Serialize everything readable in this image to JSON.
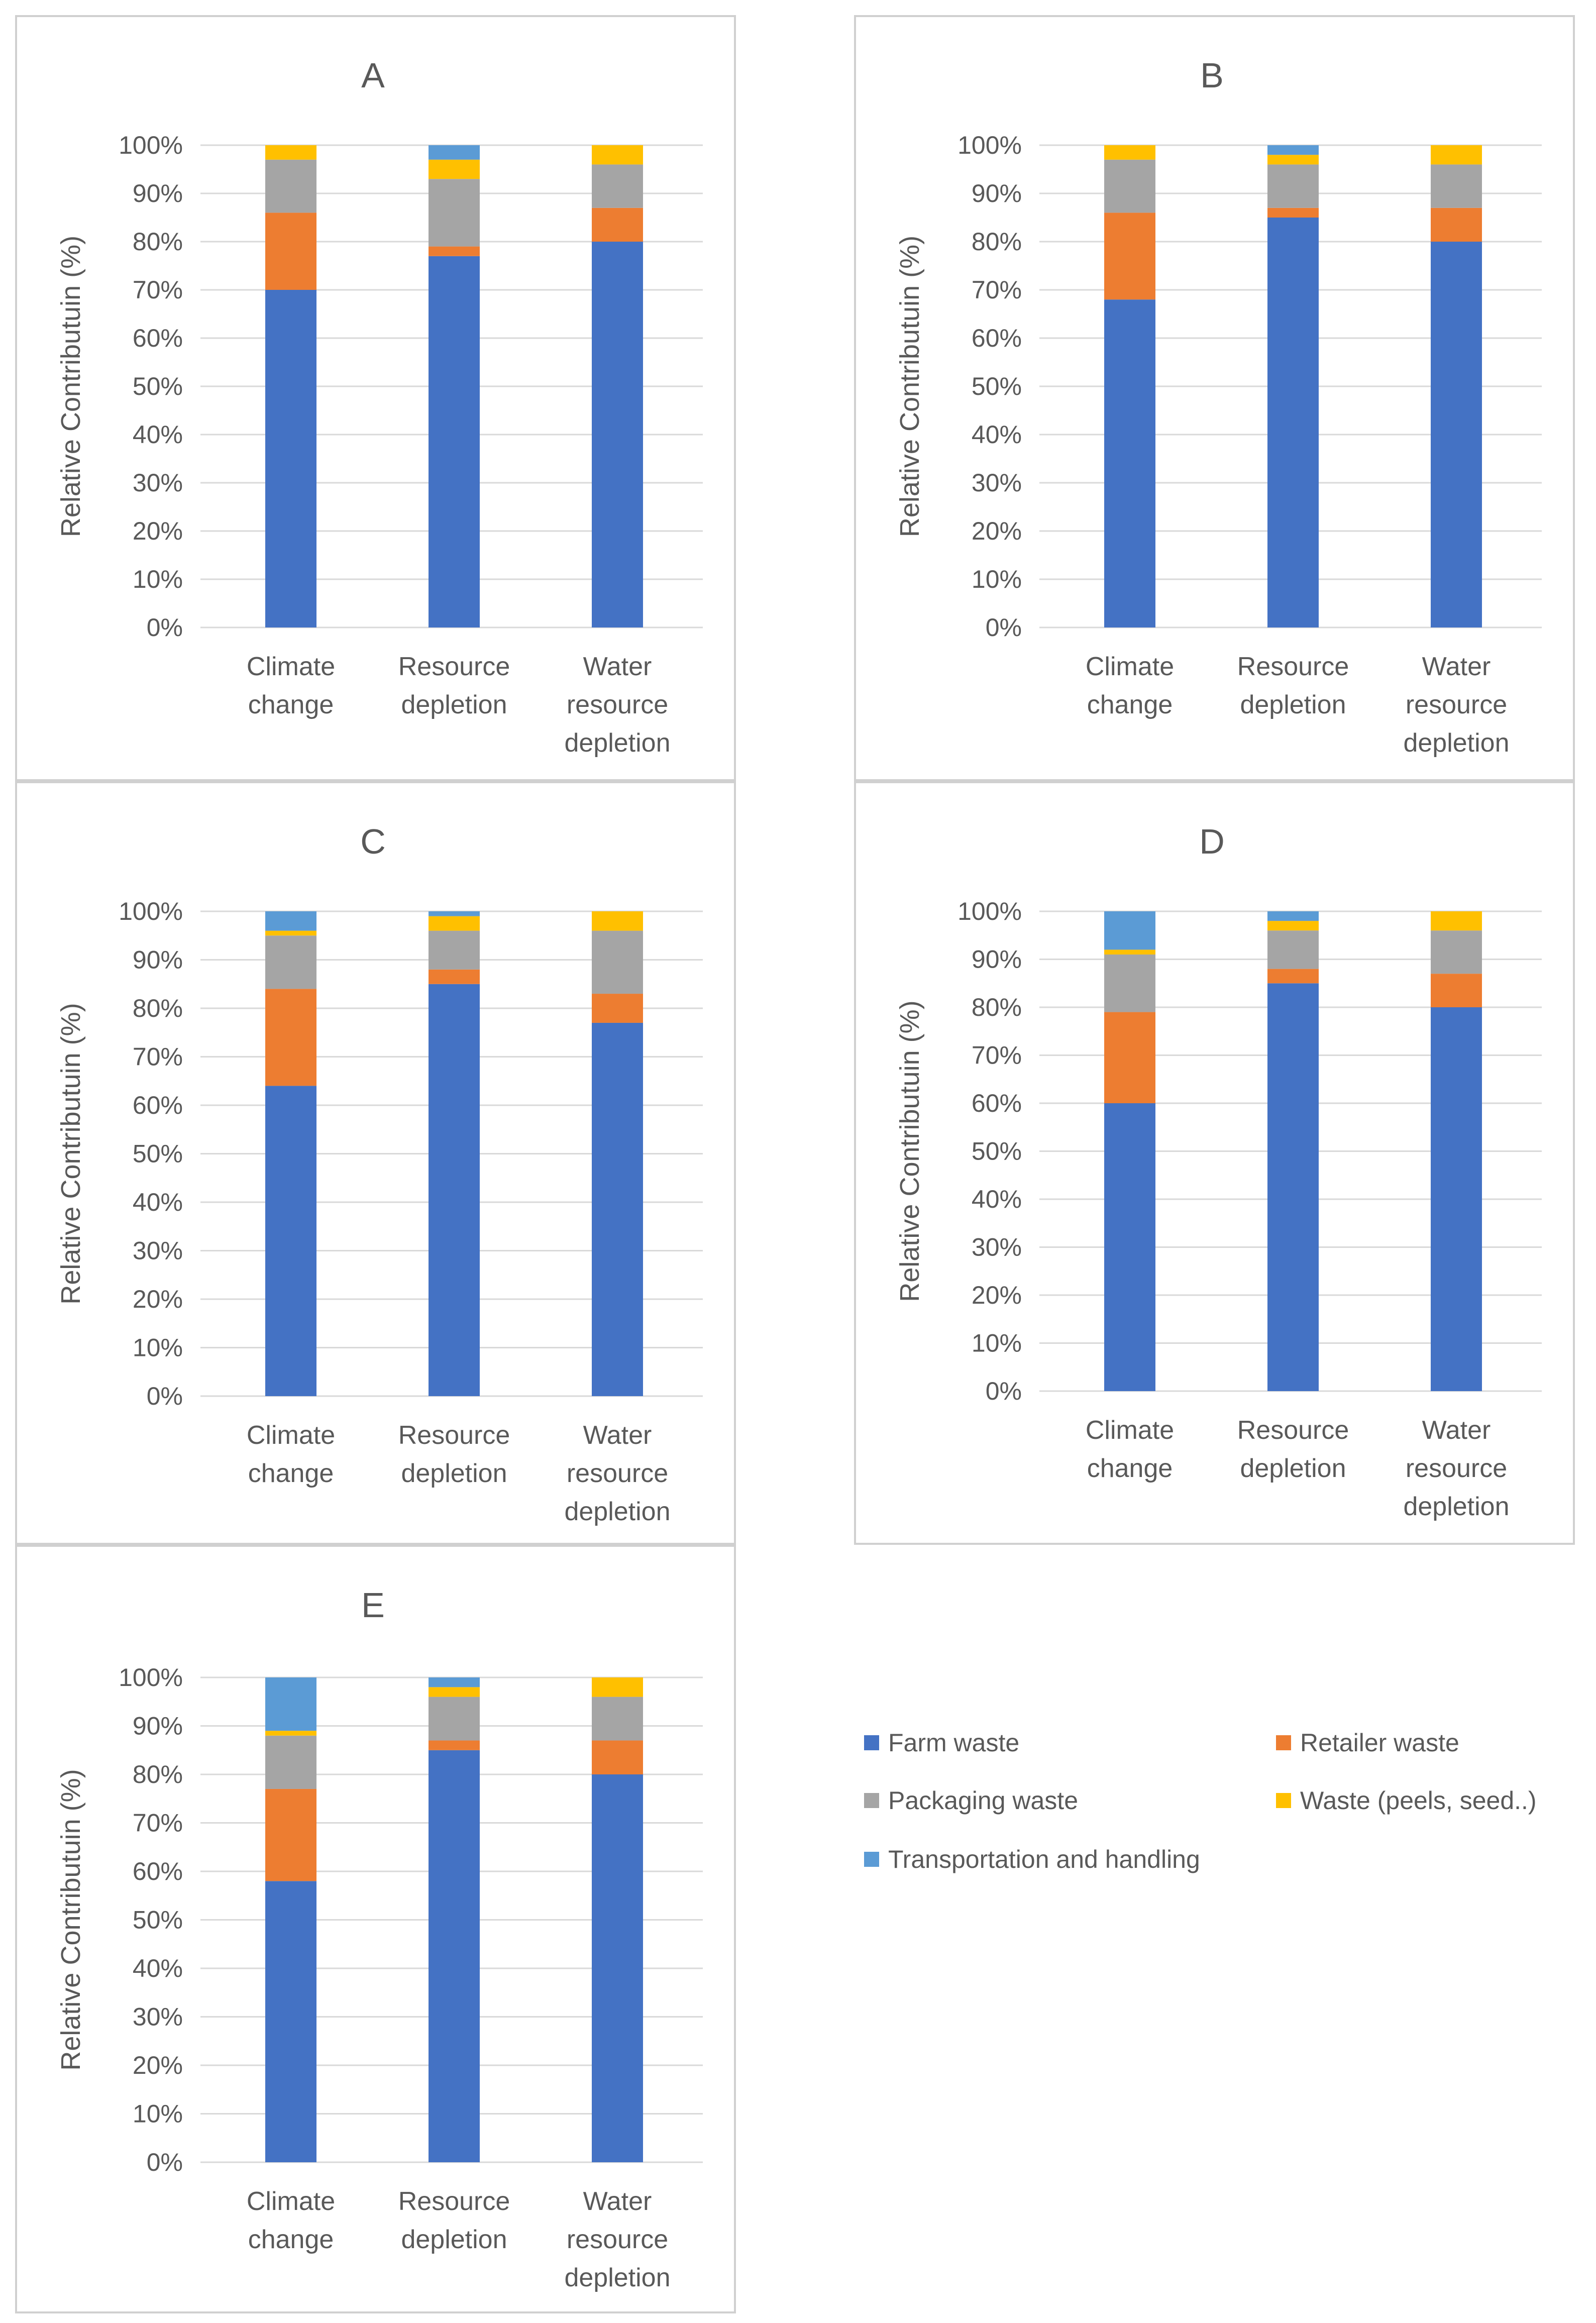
{
  "legend": {
    "items": [
      {
        "name": "Farm waste",
        "color": "#4472C4"
      },
      {
        "name": "Retailer waste",
        "color": "#ED7D31"
      },
      {
        "name": "Packaging waste",
        "color": "#A5A5A5"
      },
      {
        "name": "Waste (peels, seed..)",
        "color": "#FFC000"
      },
      {
        "name": "Transportation and handling",
        "color": "#5B9BD5"
      }
    ]
  },
  "chart_data": [
    {
      "type": "bar",
      "stacked": true,
      "title": "A",
      "ylabel": "Relative Contributuin (%)",
      "ylim": [
        0,
        100
      ],
      "yticks": [
        "0%",
        "10%",
        "20%",
        "30%",
        "40%",
        "50%",
        "60%",
        "70%",
        "80%",
        "90%",
        "100%"
      ],
      "categories": [
        [
          "Climate",
          "change"
        ],
        [
          "Resource",
          "depletion"
        ],
        [
          "Water",
          "resource",
          "depletion"
        ]
      ],
      "series": [
        {
          "name": "Farm waste",
          "color": "#4472C4",
          "values": [
            70,
            77,
            80
          ]
        },
        {
          "name": "Retailer waste",
          "color": "#ED7D31",
          "values": [
            16,
            2,
            7
          ]
        },
        {
          "name": "Packaging waste",
          "color": "#A5A5A5",
          "values": [
            11,
            14,
            9
          ]
        },
        {
          "name": "Waste (peels, seed..)",
          "color": "#FFC000",
          "values": [
            3,
            4,
            4
          ]
        },
        {
          "name": "Transportation and handling",
          "color": "#5B9BD5",
          "values": [
            0,
            3,
            0
          ]
        }
      ]
    },
    {
      "type": "bar",
      "stacked": true,
      "title": "B",
      "ylabel": "Relative Contributuin (%)",
      "ylim": [
        0,
        100
      ],
      "yticks": [
        "0%",
        "10%",
        "20%",
        "30%",
        "40%",
        "50%",
        "60%",
        "70%",
        "80%",
        "90%",
        "100%"
      ],
      "categories": [
        [
          "Climate",
          "change"
        ],
        [
          "Resource",
          "depletion"
        ],
        [
          "Water",
          "resource",
          "depletion"
        ]
      ],
      "series": [
        {
          "name": "Farm waste",
          "color": "#4472C4",
          "values": [
            68,
            85,
            80
          ]
        },
        {
          "name": "Retailer waste",
          "color": "#ED7D31",
          "values": [
            18,
            2,
            7
          ]
        },
        {
          "name": "Packaging waste",
          "color": "#A5A5A5",
          "values": [
            11,
            9,
            9
          ]
        },
        {
          "name": "Waste (peels, seed..)",
          "color": "#FFC000",
          "values": [
            3,
            2,
            4
          ]
        },
        {
          "name": "Transportation and handling",
          "color": "#5B9BD5",
          "values": [
            0,
            2,
            0
          ]
        }
      ]
    },
    {
      "type": "bar",
      "stacked": true,
      "title": "C",
      "ylabel": "Relative Contributuin (%)",
      "ylim": [
        0,
        100
      ],
      "yticks": [
        "0%",
        "10%",
        "20%",
        "30%",
        "40%",
        "50%",
        "60%",
        "70%",
        "80%",
        "90%",
        "100%"
      ],
      "categories": [
        [
          "Climate",
          "change"
        ],
        [
          "Resource",
          "depletion"
        ],
        [
          "Water",
          "resource",
          "depletion"
        ]
      ],
      "series": [
        {
          "name": "Farm waste",
          "color": "#4472C4",
          "values": [
            64,
            85,
            77
          ]
        },
        {
          "name": "Retailer waste",
          "color": "#ED7D31",
          "values": [
            20,
            3,
            6
          ]
        },
        {
          "name": "Packaging waste",
          "color": "#A5A5A5",
          "values": [
            11,
            8,
            13
          ]
        },
        {
          "name": "Waste (peels, seed..)",
          "color": "#FFC000",
          "values": [
            1,
            3,
            4
          ]
        },
        {
          "name": "Transportation and handling",
          "color": "#5B9BD5",
          "values": [
            4,
            1,
            0
          ]
        }
      ]
    },
    {
      "type": "bar",
      "stacked": true,
      "title": "D",
      "ylabel": "Relative Contributuin (%)",
      "ylim": [
        0,
        100
      ],
      "yticks": [
        "0%",
        "10%",
        "20%",
        "30%",
        "40%",
        "50%",
        "60%",
        "70%",
        "80%",
        "90%",
        "100%"
      ],
      "categories": [
        [
          "Climate",
          "change"
        ],
        [
          "Resource",
          "depletion"
        ],
        [
          "Water",
          "resource",
          "depletion"
        ]
      ],
      "series": [
        {
          "name": "Farm waste",
          "color": "#4472C4",
          "values": [
            60,
            85,
            80
          ]
        },
        {
          "name": "Retailer waste",
          "color": "#ED7D31",
          "values": [
            19,
            3,
            7
          ]
        },
        {
          "name": "Packaging waste",
          "color": "#A5A5A5",
          "values": [
            12,
            8,
            9
          ]
        },
        {
          "name": "Waste (peels, seed..)",
          "color": "#FFC000",
          "values": [
            1,
            2,
            4
          ]
        },
        {
          "name": "Transportation and handling",
          "color": "#5B9BD5",
          "values": [
            8,
            2,
            0
          ]
        }
      ]
    },
    {
      "type": "bar",
      "stacked": true,
      "title": "E",
      "ylabel": "Relative Contributuin (%)",
      "ylim": [
        0,
        100
      ],
      "yticks": [
        "0%",
        "10%",
        "20%",
        "30%",
        "40%",
        "50%",
        "60%",
        "70%",
        "80%",
        "90%",
        "100%"
      ],
      "categories": [
        [
          "Climate",
          "change"
        ],
        [
          "Resource",
          "depletion"
        ],
        [
          "Water",
          "resource",
          "depletion"
        ]
      ],
      "series": [
        {
          "name": "Farm waste",
          "color": "#4472C4",
          "values": [
            58,
            85,
            80
          ]
        },
        {
          "name": "Retailer waste",
          "color": "#ED7D31",
          "values": [
            19,
            2,
            7
          ]
        },
        {
          "name": "Packaging waste",
          "color": "#A5A5A5",
          "values": [
            11,
            9,
            9
          ]
        },
        {
          "name": "Waste (peels, seed..)",
          "color": "#FFC000",
          "values": [
            1,
            2,
            4
          ]
        },
        {
          "name": "Transportation and handling",
          "color": "#5B9BD5",
          "values": [
            11,
            2,
            0
          ]
        }
      ]
    }
  ]
}
